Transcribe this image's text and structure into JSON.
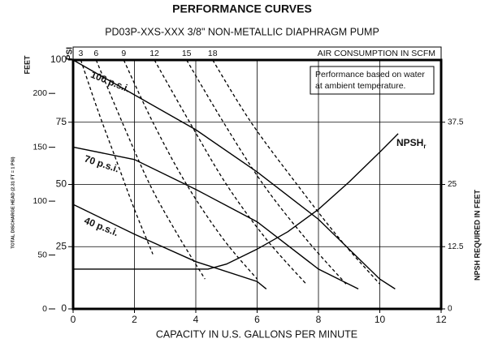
{
  "chart_data": {
    "type": "line",
    "title": "PERFORMANCE CURVES",
    "subtitle": "PD03P-XXS-XXX  3/8\" NON-METALLIC DIAPHRAGM PUMP",
    "xlabel": "CAPACITY IN U.S. GALLONS PER MINUTE",
    "xlim": [
      0,
      12
    ],
    "xticks": [
      0,
      2,
      4,
      6,
      8,
      10,
      12
    ],
    "ylabel": "PSI",
    "ylim": [
      0,
      100
    ],
    "yticks": [
      0,
      25,
      50,
      75,
      100
    ],
    "feet_label": "FEET",
    "feet_axis_label": "TOTAL DISCHARGE HEAD (2.31 FT = 1 PSI)",
    "feet_lim": [
      0,
      231
    ],
    "feet_ticks": [
      0,
      50,
      100,
      150,
      200
    ],
    "y2label": "NPSH REQUIRED IN FEET",
    "y2lim": [
      0,
      50
    ],
    "y2ticks": [
      0,
      12.5,
      25,
      37.5
    ],
    "air_label": "AIR CONSUMPTION IN SCFM",
    "note": [
      "Performance based on water",
      "at ambient temperature."
    ],
    "grid": true,
    "series": [
      {
        "name": "100 p.s.i.",
        "color": "#000000",
        "x": [
          0,
          2,
          4,
          6,
          8,
          10,
          10.5
        ],
        "values": [
          100,
          86,
          72,
          55,
          36,
          12,
          8
        ]
      },
      {
        "name": "70 p.s.i.",
        "color": "#000000",
        "x": [
          0,
          2,
          4,
          6,
          8,
          9.3
        ],
        "values": [
          65,
          60,
          48,
          35,
          16,
          8
        ]
      },
      {
        "name": "40 p.s.i.",
        "color": "#000000",
        "x": [
          0,
          2,
          4,
          6,
          6.3
        ],
        "values": [
          42,
          30,
          19,
          11,
          8
        ]
      },
      {
        "name": "NPSH",
        "subscript": "r",
        "color": "#000000",
        "axis": "y2",
        "x": [
          0,
          4.4,
          5,
          6,
          7,
          8,
          9,
          10,
          10.6
        ],
        "values": [
          8,
          8,
          9,
          12,
          15.5,
          20,
          25.5,
          31.5,
          35.2
        ]
      }
    ],
    "air_curves": [
      {
        "scfm": 3,
        "x": [
          0.25,
          0.8,
          1.4,
          2.0,
          2.6
        ],
        "values": [
          100,
          80,
          60,
          40,
          22
        ]
      },
      {
        "scfm": 6,
        "x": [
          0.75,
          1.6,
          2.5,
          3.4,
          4.3
        ],
        "values": [
          100,
          75,
          50,
          30,
          12
        ]
      },
      {
        "scfm": 9,
        "x": [
          1.65,
          2.6,
          3.7,
          4.9,
          6.0
        ],
        "values": [
          100,
          75,
          50,
          28,
          12
        ]
      },
      {
        "scfm": 12,
        "x": [
          2.65,
          3.8,
          5.0,
          6.3,
          7.6
        ],
        "values": [
          100,
          75,
          50,
          28,
          10
        ]
      },
      {
        "scfm": 15,
        "x": [
          3.7,
          4.9,
          6.2,
          7.6,
          8.9
        ],
        "values": [
          100,
          75,
          50,
          28,
          10
        ]
      },
      {
        "scfm": 18,
        "x": [
          4.55,
          5.8,
          7.3,
          8.7,
          10.0
        ],
        "values": [
          100,
          75,
          50,
          28,
          10
        ]
      }
    ]
  }
}
